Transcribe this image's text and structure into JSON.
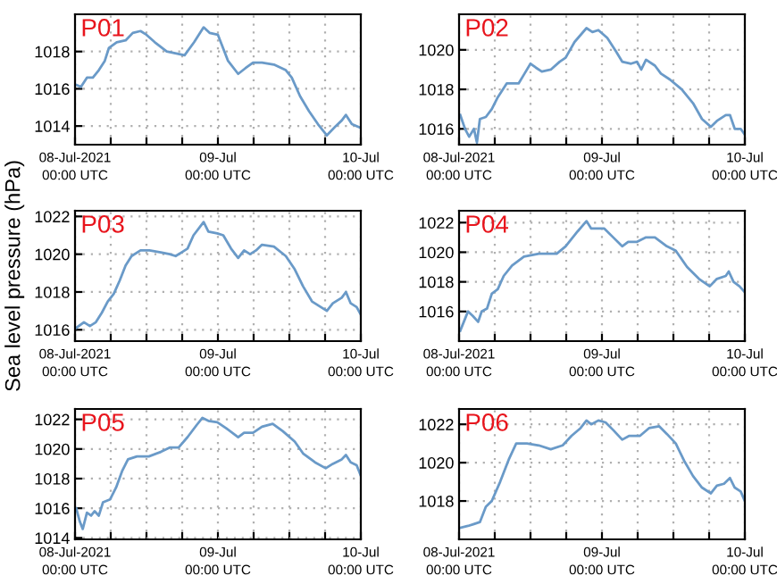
{
  "chart_data": [
    {
      "type": "line",
      "title": "P01",
      "grid": true,
      "xlim": [
        "2021-07-08T00:00",
        "2021-07-10T00:00"
      ],
      "ylim": [
        1013,
        1020
      ],
      "yticks": [
        1014,
        1016,
        1018
      ],
      "xticks": [
        {
          "value": "2021-07-08T00:00",
          "label": "08-Jul-2021\n00:00 UTC"
        },
        {
          "value": "2021-07-08T06:00",
          "label": null
        },
        {
          "value": "2021-07-08T12:00",
          "label": null
        },
        {
          "value": "2021-07-08T18:00",
          "label": null
        },
        {
          "value": "2021-07-09T00:00",
          "label": "09-Jul\n00:00 UTC"
        },
        {
          "value": "2021-07-09T06:00",
          "label": null
        },
        {
          "value": "2021-07-09T12:00",
          "label": null
        },
        {
          "value": "2021-07-09T18:00",
          "label": null
        },
        {
          "value": "2021-07-10T00:00",
          "label": "10-Jul\n00:00 UTC"
        }
      ],
      "series": [
        {
          "color": "#6a9ac8",
          "x": [
            "2021-07-08T00:18",
            "2021-07-08T01:00",
            "2021-07-08T02:00",
            "2021-07-08T03:00",
            "2021-07-08T04:00",
            "2021-07-08T05:00",
            "2021-07-08T05:42",
            "2021-07-08T07:00",
            "2021-07-08T08:30",
            "2021-07-08T09:42",
            "2021-07-08T11:00",
            "2021-07-08T12:00",
            "2021-07-08T13:24",
            "2021-07-08T15:24",
            "2021-07-08T17:00",
            "2021-07-08T18:24",
            "2021-07-08T20:00",
            "2021-07-08T21:36",
            "2021-07-08T22:36",
            "2021-07-09T00:00",
            "2021-07-09T01:42",
            "2021-07-09T03:24",
            "2021-07-09T04:36",
            "2021-07-09T05:54",
            "2021-07-09T07:24",
            "2021-07-09T09:24",
            "2021-07-09T11:24",
            "2021-07-09T12:24",
            "2021-07-09T13:48",
            "2021-07-09T15:18",
            "2021-07-09T16:48",
            "2021-07-09T18:18",
            "2021-07-09T19:48",
            "2021-07-09T20:48",
            "2021-07-09T21:30",
            "2021-07-09T22:30",
            "2021-07-10T00:00"
          ],
          "values": [
            1016.2,
            1016.1,
            1016.6,
            1016.6,
            1017.0,
            1017.5,
            1018.2,
            1018.5,
            1018.6,
            1019.0,
            1019.1,
            1018.9,
            1018.5,
            1018.0,
            1017.9,
            1017.8,
            1018.5,
            1019.3,
            1019.0,
            1018.9,
            1017.5,
            1016.8,
            1017.1,
            1017.4,
            1017.4,
            1017.3,
            1017.0,
            1016.6,
            1015.6,
            1014.8,
            1014.1,
            1013.5,
            1014.0,
            1014.3,
            1014.6,
            1014.1,
            1013.9
          ]
        }
      ]
    },
    {
      "type": "line",
      "title": "P02",
      "grid": true,
      "xlim": [
        "2021-07-08T00:00",
        "2021-07-10T00:00"
      ],
      "ylim": [
        1015.2,
        1021.8
      ],
      "yticks": [
        1016,
        1018,
        1020
      ],
      "xticks": [
        {
          "value": "2021-07-08T00:00",
          "label": "08-Jul-2021\n00:00 UTC"
        },
        {
          "value": "2021-07-08T06:00",
          "label": null
        },
        {
          "value": "2021-07-08T12:00",
          "label": null
        },
        {
          "value": "2021-07-08T18:00",
          "label": null
        },
        {
          "value": "2021-07-09T00:00",
          "label": "09-Jul\n00:00 UTC"
        },
        {
          "value": "2021-07-09T06:00",
          "label": null
        },
        {
          "value": "2021-07-09T12:00",
          "label": null
        },
        {
          "value": "2021-07-09T18:00",
          "label": null
        },
        {
          "value": "2021-07-10T00:00",
          "label": "10-Jul\n00:00 UTC"
        }
      ],
      "series": [
        {
          "color": "#6a9ac8",
          "x": [
            "2021-07-08T00:12",
            "2021-07-08T01:00",
            "2021-07-08T01:42",
            "2021-07-08T02:30",
            "2021-07-08T03:00",
            "2021-07-08T03:30",
            "2021-07-08T04:30",
            "2021-07-08T05:30",
            "2021-07-08T06:30",
            "2021-07-08T08:00",
            "2021-07-08T10:00",
            "2021-07-08T11:00",
            "2021-07-08T12:00",
            "2021-07-08T12:54",
            "2021-07-08T13:54",
            "2021-07-08T15:24",
            "2021-07-08T16:54",
            "2021-07-08T17:54",
            "2021-07-08T19:24",
            "2021-07-08T21:24",
            "2021-07-08T22:24",
            "2021-07-08T23:24",
            "2021-07-09T00:54",
            "2021-07-09T02:24",
            "2021-07-09T03:24",
            "2021-07-09T04:54",
            "2021-07-09T05:54",
            "2021-07-09T06:36",
            "2021-07-09T07:24",
            "2021-07-09T08:54",
            "2021-07-09T09:54",
            "2021-07-09T11:24",
            "2021-07-09T13:24",
            "2021-07-09T15:18",
            "2021-07-09T16:48",
            "2021-07-09T18:18",
            "2021-07-09T19:18",
            "2021-07-09T20:48",
            "2021-07-09T21:30",
            "2021-07-09T22:18",
            "2021-07-09T23:18",
            "2021-07-10T00:00"
          ],
          "values": [
            1016.7,
            1016.0,
            1015.6,
            1016.0,
            1015.3,
            1016.5,
            1016.6,
            1017.0,
            1017.6,
            1018.3,
            1018.3,
            1018.8,
            1019.3,
            1019.1,
            1018.9,
            1019.0,
            1019.4,
            1019.6,
            1020.4,
            1021.1,
            1020.9,
            1021.0,
            1020.6,
            1019.9,
            1019.4,
            1019.3,
            1019.4,
            1019.0,
            1019.5,
            1019.2,
            1018.8,
            1018.5,
            1018.0,
            1017.3,
            1016.5,
            1016.1,
            1016.4,
            1016.7,
            1016.7,
            1016.0,
            1016.0,
            1015.7
          ]
        }
      ]
    },
    {
      "type": "line",
      "title": "P03",
      "ylabel": "Sea level pressure (hPa)",
      "grid": true,
      "xlim": [
        "2021-07-08T00:00",
        "2021-07-10T00:00"
      ],
      "ylim": [
        1015.4,
        1022.3
      ],
      "yticks": [
        1016,
        1018,
        1020,
        1022
      ],
      "xticks": [
        {
          "value": "2021-07-08T00:00",
          "label": "08-Jul-2021\n00:00 UTC"
        },
        {
          "value": "2021-07-08T06:00",
          "label": null
        },
        {
          "value": "2021-07-08T12:00",
          "label": null
        },
        {
          "value": "2021-07-08T18:00",
          "label": null
        },
        {
          "value": "2021-07-09T00:00",
          "label": "09-Jul\n00:00 UTC"
        },
        {
          "value": "2021-07-09T06:00",
          "label": null
        },
        {
          "value": "2021-07-09T12:00",
          "label": null
        },
        {
          "value": "2021-07-09T18:00",
          "label": null
        },
        {
          "value": "2021-07-10T00:00",
          "label": "10-Jul\n00:00 UTC"
        }
      ],
      "series": [
        {
          "color": "#6a9ac8",
          "x": [
            "2021-07-08T00:12",
            "2021-07-08T01:30",
            "2021-07-08T02:30",
            "2021-07-08T03:30",
            "2021-07-08T04:30",
            "2021-07-08T05:30",
            "2021-07-08T06:30",
            "2021-07-08T07:30",
            "2021-07-08T08:30",
            "2021-07-08T09:30",
            "2021-07-08T11:00",
            "2021-07-08T12:30",
            "2021-07-08T14:24",
            "2021-07-08T15:54",
            "2021-07-08T16:54",
            "2021-07-08T17:54",
            "2021-07-08T18:54",
            "2021-07-08T19:54",
            "2021-07-08T21:36",
            "2021-07-08T22:24",
            "2021-07-08T23:54",
            "2021-07-09T00:54",
            "2021-07-09T02:12",
            "2021-07-09T03:24",
            "2021-07-09T04:24",
            "2021-07-09T05:24",
            "2021-07-09T06:24",
            "2021-07-09T07:24",
            "2021-07-09T09:24",
            "2021-07-09T11:24",
            "2021-07-09T12:54",
            "2021-07-09T14:18",
            "2021-07-09T15:48",
            "2021-07-09T18:18",
            "2021-07-09T19:18",
            "2021-07-09T20:48",
            "2021-07-09T21:30",
            "2021-07-09T22:18",
            "2021-07-09T23:18",
            "2021-07-10T00:00"
          ],
          "values": [
            1016.1,
            1016.4,
            1016.2,
            1016.4,
            1016.9,
            1017.5,
            1017.9,
            1018.6,
            1019.4,
            1019.9,
            1020.2,
            1020.2,
            1020.1,
            1020.0,
            1019.9,
            1020.1,
            1020.3,
            1021.0,
            1021.7,
            1021.2,
            1021.1,
            1021.0,
            1020.3,
            1019.8,
            1020.2,
            1020.0,
            1020.2,
            1020.5,
            1020.4,
            1019.9,
            1019.2,
            1018.3,
            1017.5,
            1017.0,
            1017.4,
            1017.7,
            1018.0,
            1017.4,
            1017.2,
            1016.8
          ]
        }
      ]
    },
    {
      "type": "line",
      "title": "P04",
      "grid": true,
      "xlim": [
        "2021-07-08T00:00",
        "2021-07-10T00:00"
      ],
      "ylim": [
        1014,
        1022.8
      ],
      "yticks": [
        1016,
        1018,
        1020,
        1022
      ],
      "xticks": [
        {
          "value": "2021-07-08T00:00",
          "label": "08-Jul-2021\n00:00 UTC"
        },
        {
          "value": "2021-07-08T06:00",
          "label": null
        },
        {
          "value": "2021-07-08T12:00",
          "label": null
        },
        {
          "value": "2021-07-08T18:00",
          "label": null
        },
        {
          "value": "2021-07-09T00:00",
          "label": "09-Jul\n00:00 UTC"
        },
        {
          "value": "2021-07-09T06:00",
          "label": null
        },
        {
          "value": "2021-07-09T12:00",
          "label": null
        },
        {
          "value": "2021-07-09T18:00",
          "label": null
        },
        {
          "value": "2021-07-10T00:00",
          "label": "10-Jul\n00:00 UTC"
        }
      ],
      "series": [
        {
          "color": "#6a9ac8",
          "x": [
            "2021-07-08T00:12",
            "2021-07-08T01:00",
            "2021-07-08T01:30",
            "2021-07-08T02:18",
            "2021-07-08T03:12",
            "2021-07-08T03:48",
            "2021-07-08T04:42",
            "2021-07-08T05:30",
            "2021-07-08T06:30",
            "2021-07-08T07:30",
            "2021-07-08T08:54",
            "2021-07-08T10:54",
            "2021-07-08T13:24",
            "2021-07-08T16:24",
            "2021-07-08T17:54",
            "2021-07-08T19:54",
            "2021-07-08T21:24",
            "2021-07-08T22:12",
            "2021-07-09T00:24",
            "2021-07-09T01:54",
            "2021-07-09T03:24",
            "2021-07-09T04:24",
            "2021-07-09T05:54",
            "2021-07-09T07:24",
            "2021-07-09T08:54",
            "2021-07-09T10:54",
            "2021-07-09T12:24",
            "2021-07-09T14:18",
            "2021-07-09T16:18",
            "2021-07-09T18:06",
            "2021-07-09T19:18",
            "2021-07-09T20:48",
            "2021-07-09T21:18",
            "2021-07-09T22:06",
            "2021-07-09T23:06",
            "2021-07-10T00:00"
          ],
          "values": [
            1014.7,
            1015.5,
            1016.0,
            1015.7,
            1015.3,
            1016.0,
            1016.2,
            1017.2,
            1017.5,
            1018.4,
            1019.1,
            1019.7,
            1019.9,
            1019.9,
            1020.4,
            1021.4,
            1022.1,
            1021.6,
            1021.6,
            1021.0,
            1020.4,
            1020.7,
            1020.7,
            1021.0,
            1021.0,
            1020.4,
            1020.1,
            1019.0,
            1018.2,
            1017.7,
            1018.2,
            1018.4,
            1018.7,
            1018.0,
            1017.7,
            1017.3
          ]
        }
      ]
    },
    {
      "type": "line",
      "title": "P05",
      "grid": true,
      "xlim": [
        "2021-07-08T00:00",
        "2021-07-10T00:00"
      ],
      "ylim": [
        1013.9,
        1022.7
      ],
      "yticks": [
        1014,
        1016,
        1018,
        1020,
        1022
      ],
      "xticks": [
        {
          "value": "2021-07-08T00:00",
          "label": "08-Jul-2021\n00:00 UTC"
        },
        {
          "value": "2021-07-08T06:00",
          "label": null
        },
        {
          "value": "2021-07-08T12:00",
          "label": null
        },
        {
          "value": "2021-07-08T18:00",
          "label": null
        },
        {
          "value": "2021-07-09T00:00",
          "label": "09-Jul\n00:00 UTC"
        },
        {
          "value": "2021-07-09T06:00",
          "label": null
        },
        {
          "value": "2021-07-09T12:00",
          "label": null
        },
        {
          "value": "2021-07-09T18:00",
          "label": null
        },
        {
          "value": "2021-07-10T00:00",
          "label": "10-Jul\n00:00 UTC"
        }
      ],
      "series": [
        {
          "color": "#6a9ac8",
          "x": [
            "2021-07-08T00:12",
            "2021-07-08T00:48",
            "2021-07-08T01:18",
            "2021-07-08T02:00",
            "2021-07-08T02:42",
            "2021-07-08T03:18",
            "2021-07-08T04:00",
            "2021-07-08T04:42",
            "2021-07-08T05:54",
            "2021-07-08T06:54",
            "2021-07-08T07:54",
            "2021-07-08T08:54",
            "2021-07-08T10:24",
            "2021-07-08T12:24",
            "2021-07-08T14:24",
            "2021-07-08T15:54",
            "2021-07-08T17:24",
            "2021-07-08T18:54",
            "2021-07-08T20:24",
            "2021-07-08T21:24",
            "2021-07-08T22:24",
            "2021-07-08T23:54",
            "2021-07-09T01:24",
            "2021-07-09T03:24",
            "2021-07-09T04:24",
            "2021-07-09T05:54",
            "2021-07-09T07:24",
            "2021-07-09T09:12",
            "2021-07-09T10:54",
            "2021-07-09T12:54",
            "2021-07-09T14:18",
            "2021-07-09T16:18",
            "2021-07-09T18:06",
            "2021-07-09T19:18",
            "2021-07-09T20:48",
            "2021-07-09T21:30",
            "2021-07-09T22:18",
            "2021-07-09T23:18",
            "2021-07-10T00:00"
          ],
          "values": [
            1016.0,
            1015.1,
            1014.6,
            1015.7,
            1015.5,
            1015.8,
            1015.5,
            1016.4,
            1016.6,
            1017.4,
            1018.5,
            1019.3,
            1019.5,
            1019.5,
            1019.8,
            1020.1,
            1020.1,
            1020.8,
            1021.6,
            1022.1,
            1021.9,
            1021.8,
            1021.4,
            1020.8,
            1021.1,
            1021.1,
            1021.5,
            1021.7,
            1021.2,
            1020.5,
            1019.7,
            1019.1,
            1018.7,
            1019.0,
            1019.3,
            1019.6,
            1019.1,
            1018.9,
            1018.2
          ]
        }
      ]
    },
    {
      "type": "line",
      "title": "P06",
      "grid": true,
      "xlim": [
        "2021-07-08T00:00",
        "2021-07-10T00:00"
      ],
      "ylim": [
        1016,
        1022.8
      ],
      "yticks": [
        1018,
        1020,
        1022
      ],
      "xticks": [
        {
          "value": "2021-07-08T00:00",
          "label": "08-Jul-2021\n00:00 UTC"
        },
        {
          "value": "2021-07-08T06:00",
          "label": null
        },
        {
          "value": "2021-07-08T12:00",
          "label": null
        },
        {
          "value": "2021-07-08T18:00",
          "label": null
        },
        {
          "value": "2021-07-09T00:00",
          "label": "09-Jul\n00:00 UTC"
        },
        {
          "value": "2021-07-09T06:00",
          "label": null
        },
        {
          "value": "2021-07-09T12:00",
          "label": null
        },
        {
          "value": "2021-07-09T18:00",
          "label": null
        },
        {
          "value": "2021-07-10T00:00",
          "label": "10-Jul\n00:00 UTC"
        }
      ],
      "series": [
        {
          "color": "#6a9ac8",
          "x": [
            "2021-07-08T00:12",
            "2021-07-08T01:30",
            "2021-07-08T02:30",
            "2021-07-08T03:30",
            "2021-07-08T04:30",
            "2021-07-08T05:30",
            "2021-07-08T06:54",
            "2021-07-08T08:24",
            "2021-07-08T09:36",
            "2021-07-08T11:24",
            "2021-07-08T13:24",
            "2021-07-08T15:24",
            "2021-07-08T17:24",
            "2021-07-08T18:54",
            "2021-07-08T20:24",
            "2021-07-08T21:24",
            "2021-07-08T22:12",
            "2021-07-08T23:24",
            "2021-07-09T00:36",
            "2021-07-09T01:54",
            "2021-07-09T03:24",
            "2021-07-09T04:36",
            "2021-07-09T06:24",
            "2021-07-09T07:54",
            "2021-07-09T09:36",
            "2021-07-09T10:54",
            "2021-07-09T12:24",
            "2021-07-09T13:48",
            "2021-07-09T15:18",
            "2021-07-09T16:48",
            "2021-07-09T18:18",
            "2021-07-09T19:18",
            "2021-07-09T20:30",
            "2021-07-09T21:30",
            "2021-07-09T22:18",
            "2021-07-09T23:18",
            "2021-07-10T00:00"
          ],
          "values": [
            1016.6,
            1016.7,
            1016.8,
            1016.9,
            1017.7,
            1018.0,
            1019.0,
            1020.2,
            1021.0,
            1021.0,
            1020.9,
            1020.7,
            1020.9,
            1021.4,
            1021.8,
            1022.2,
            1022.0,
            1022.2,
            1022.1,
            1021.7,
            1021.2,
            1021.4,
            1021.4,
            1021.8,
            1021.9,
            1021.5,
            1021.0,
            1020.1,
            1019.3,
            1018.7,
            1018.4,
            1018.8,
            1018.9,
            1019.2,
            1018.7,
            1018.5,
            1018.0
          ]
        }
      ]
    }
  ]
}
